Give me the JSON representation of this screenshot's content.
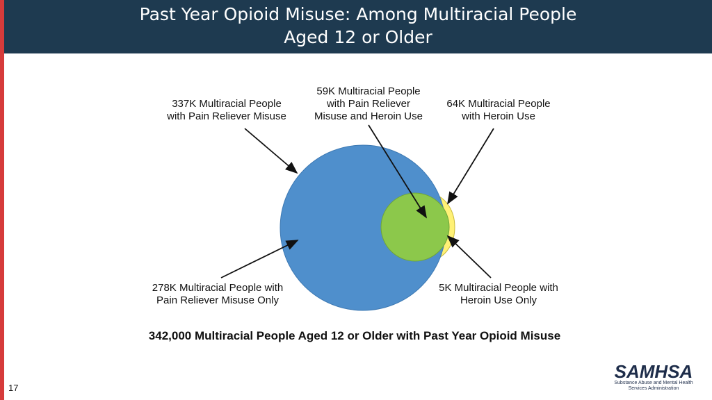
{
  "header": {
    "title_line1": "Past Year Opioid Misuse: Among Multiracial People",
    "title_line2": "Aged 12 or Older"
  },
  "labels": {
    "pain_reliever_misuse": [
      "337K Multiracial People",
      "with Pain Reliever Misuse"
    ],
    "both": [
      "59K Multiracial People",
      "with Pain Reliever",
      "Misuse and Heroin Use"
    ],
    "heroin_use": [
      "64K Multiracial People",
      "with Heroin Use"
    ],
    "pain_reliever_only": [
      "278K Multiracial People with",
      "Pain Reliever Misuse Only"
    ],
    "heroin_only": [
      "5K Multiracial People with",
      "Heroin Use Only"
    ]
  },
  "summary": "342,000 Multiracial People Aged 12 or Older with Past Year Opioid Misuse",
  "page_number": "17",
  "logo": {
    "word": "SAMHSA",
    "sub_line1": "Substance Abuse and Mental Health",
    "sub_line2": "Services Administration"
  },
  "colors": {
    "pain_reliever_circle": "#4f8fcc",
    "both_circle": "#8cc84b",
    "heroin_circle": "#fff176",
    "header_bg": "#1e3a50",
    "accent_bar": "#d63b3b"
  }
}
